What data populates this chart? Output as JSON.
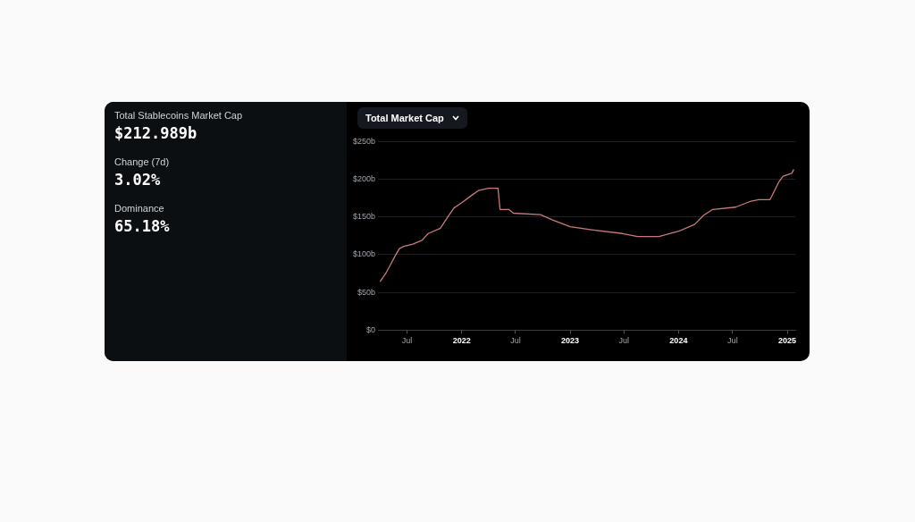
{
  "chart_data": [
    {
      "type": "other",
      "title": "Total Stablecoins Market Cap",
      "annotations": [
        "$212.989b",
        "Change (7d)",
        "3.02%",
        "Dominance",
        "65.18%"
      ]
    },
    {
      "type": "line",
      "title": "Total Market Cap",
      "color": "#c97a7a",
      "grid": "y",
      "x": [
        "2021-04-01",
        "2021-04-20",
        "2021-05-05",
        "2021-05-20",
        "2021-06-05",
        "2021-06-20",
        "2021-07-20",
        "2021-08-20",
        "2021-09-10",
        "2021-10-21",
        "2021-11-15",
        "2021-12-06",
        "2022-01-01",
        "2022-02-01",
        "2022-02-26",
        "2022-04-01",
        "2022-05-03",
        "2022-05-10",
        "2022-06-08",
        "2022-06-24",
        "2022-09-23",
        "2022-11-03",
        "2023-01-01",
        "2023-03-15",
        "2023-06-26",
        "2023-08-16",
        "2023-10-27",
        "2024-01-01",
        "2024-02-24",
        "2024-03-25",
        "2024-04-25",
        "2024-07-11",
        "2024-09-01",
        "2024-09-27",
        "2024-11-04",
        "2024-12-03",
        "2024-12-18",
        "2025-01-16",
        "2025-01-23"
      ],
      "values": [
        64,
        75,
        86,
        97,
        108,
        111,
        114,
        119,
        128,
        135,
        150,
        162,
        169,
        178,
        185,
        188,
        188,
        160,
        160,
        155,
        153,
        146,
        137,
        133,
        128,
        124,
        124,
        131,
        140,
        152,
        160,
        163,
        171,
        173,
        173,
        196,
        204,
        208,
        213
      ],
      "xlim": [
        "2021-03-25",
        "2025-01-28"
      ],
      "xticks": [
        {
          "value": "2021-07-01",
          "label": "Jul"
        },
        {
          "value": "2022-01-01",
          "label": "2022"
        },
        {
          "value": "2022-07-01",
          "label": "Jul"
        },
        {
          "value": "2023-01-01",
          "label": "2023"
        },
        {
          "value": "2023-07-01",
          "label": "Jul"
        },
        {
          "value": "2024-01-01",
          "label": "2024"
        },
        {
          "value": "2024-07-01",
          "label": "Jul"
        },
        {
          "value": "2025-01-01",
          "label": "2025"
        }
      ],
      "ylim": [
        0,
        250
      ],
      "yticks": [
        {
          "value": 0,
          "label": "$0"
        },
        {
          "value": 50,
          "label": "$50b"
        },
        {
          "value": 100,
          "label": "$100b"
        },
        {
          "value": 150,
          "label": "$150b"
        },
        {
          "value": 200,
          "label": "$200b"
        },
        {
          "value": 250,
          "label": "$250b"
        }
      ]
    }
  ]
}
